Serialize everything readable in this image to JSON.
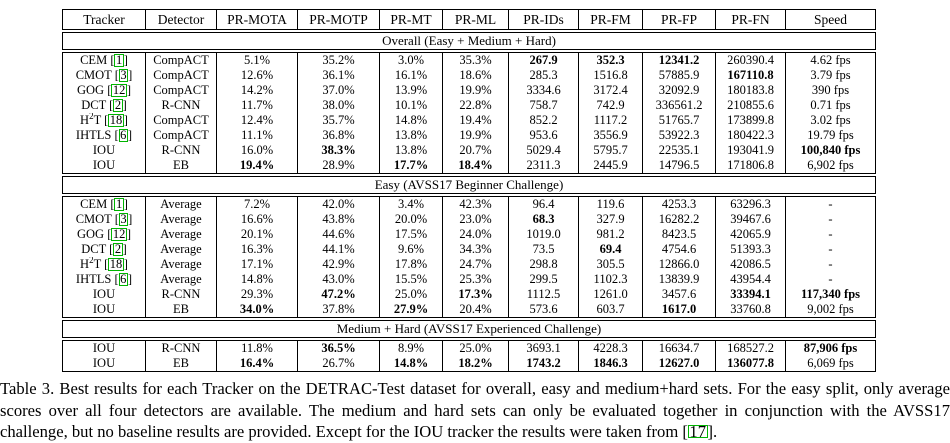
{
  "colors": {
    "citation_box_green": "#00b400",
    "table_border": "#000000",
    "text": "#000000",
    "background": "#ffffff"
  },
  "table": {
    "columns": [
      "Tracker",
      "Detector",
      "PR-MOTA",
      "PR-MOTP",
      "PR-MT",
      "PR-ML",
      "PR-IDs",
      "PR-FM",
      "PR-FP",
      "PR-FN",
      "Speed"
    ],
    "sections": [
      {
        "title": "Overall (Easy + Medium + Hard)",
        "rows": [
          {
            "tracker": [
              {
                "t": "CEM"
              }
            ],
            "cite": "1",
            "detector": "CompACT",
            "values": [
              "5.1%",
              "35.2%",
              "3.0%",
              "35.3%",
              "267.9",
              "352.3",
              "12341.2",
              "260390.4",
              "4.62 fps"
            ],
            "bold": [
              4,
              5,
              6
            ]
          },
          {
            "tracker": [
              {
                "t": "CMOT"
              }
            ],
            "cite": "3",
            "detector": "CompACT",
            "values": [
              "12.6%",
              "36.1%",
              "16.1%",
              "18.6%",
              "285.3",
              "1516.8",
              "57885.9",
              "167110.8",
              "3.79 fps"
            ],
            "bold": [
              7
            ]
          },
          {
            "tracker": [
              {
                "t": "GOG"
              }
            ],
            "cite": "12",
            "detector": "CompACT",
            "values": [
              "14.2%",
              "37.0%",
              "13.9%",
              "19.9%",
              "3334.6",
              "3172.4",
              "32092.9",
              "180183.8",
              "390 fps"
            ],
            "bold": []
          },
          {
            "tracker": [
              {
                "t": "DCT"
              }
            ],
            "cite": "2",
            "detector": "R-CNN",
            "values": [
              "11.7%",
              "38.0%",
              "10.1%",
              "22.8%",
              "758.7",
              "742.9",
              "336561.2",
              "210855.6",
              "0.71 fps"
            ],
            "bold": []
          },
          {
            "tracker": [
              {
                "t": "H"
              },
              {
                "t": "2",
                "sup": true
              },
              {
                "t": "T"
              }
            ],
            "cite": "18",
            "detector": "CompACT",
            "values": [
              "12.4%",
              "35.7%",
              "14.8%",
              "19.4%",
              "852.2",
              "1117.2",
              "51765.7",
              "173899.8",
              "3.02 fps"
            ],
            "bold": []
          },
          {
            "tracker": [
              {
                "t": "IHTLS"
              }
            ],
            "cite": "6",
            "detector": "CompACT",
            "values": [
              "11.1%",
              "36.8%",
              "13.8%",
              "19.9%",
              "953.6",
              "3556.9",
              "53922.3",
              "180422.3",
              "19.79 fps"
            ],
            "bold": []
          },
          {
            "tracker": [
              {
                "t": "IOU"
              }
            ],
            "cite": null,
            "detector": "R-CNN",
            "values": [
              "16.0%",
              "38.3%",
              "13.8%",
              "20.7%",
              "5029.4",
              "5795.7",
              "22535.1",
              "193041.9",
              "100,840 fps"
            ],
            "bold": [
              1,
              8
            ]
          },
          {
            "tracker": [
              {
                "t": "IOU"
              }
            ],
            "cite": null,
            "detector": "EB",
            "values": [
              "19.4%",
              "28.9%",
              "17.7%",
              "18.4%",
              "2311.3",
              "2445.9",
              "14796.5",
              "171806.8",
              "6,902 fps"
            ],
            "bold": [
              0,
              2,
              3
            ]
          }
        ]
      },
      {
        "title": "Easy (AVSS17 Beginner Challenge)",
        "rows": [
          {
            "tracker": [
              {
                "t": "CEM"
              }
            ],
            "cite": "1",
            "detector": "Average",
            "values": [
              "7.2%",
              "42.0%",
              "3.4%",
              "42.3%",
              "96.4",
              "119.6",
              "4253.3",
              "63296.3",
              "-"
            ],
            "bold": []
          },
          {
            "tracker": [
              {
                "t": "CMOT"
              }
            ],
            "cite": "3",
            "detector": "Average",
            "values": [
              "16.6%",
              "43.8%",
              "20.0%",
              "23.0%",
              "68.3",
              "327.9",
              "16282.2",
              "39467.6",
              "-"
            ],
            "bold": [
              4
            ]
          },
          {
            "tracker": [
              {
                "t": "GOG"
              }
            ],
            "cite": "12",
            "detector": "Average",
            "values": [
              "20.1%",
              "44.6%",
              "17.5%",
              "24.0%",
              "1019.0",
              "981.2",
              "8423.5",
              "42065.9",
              "-"
            ],
            "bold": []
          },
          {
            "tracker": [
              {
                "t": "DCT"
              }
            ],
            "cite": "2",
            "detector": "Average",
            "values": [
              "16.3%",
              "44.1%",
              "9.6%",
              "34.3%",
              "73.5",
              "69.4",
              "4754.6",
              "51393.3",
              "-"
            ],
            "bold": [
              5
            ]
          },
          {
            "tracker": [
              {
                "t": "H"
              },
              {
                "t": "2",
                "sup": true
              },
              {
                "t": "T"
              }
            ],
            "cite": "18",
            "detector": "Average",
            "values": [
              "17.1%",
              "42.9%",
              "17.8%",
              "24.7%",
              "298.8",
              "305.5",
              "12866.0",
              "42086.5",
              "-"
            ],
            "bold": []
          },
          {
            "tracker": [
              {
                "t": "IHTLS"
              }
            ],
            "cite": "6",
            "detector": "Average",
            "values": [
              "14.8%",
              "43.0%",
              "15.5%",
              "25.3%",
              "299.5",
              "1102.3",
              "13839.9",
              "43954.4",
              "-"
            ],
            "bold": []
          },
          {
            "tracker": [
              {
                "t": "IOU"
              }
            ],
            "cite": null,
            "detector": "R-CNN",
            "values": [
              "29.3%",
              "47.2%",
              "25.0%",
              "17.3%",
              "1112.5",
              "1261.0",
              "3457.6",
              "33394.1",
              "117,340 fps"
            ],
            "bold": [
              1,
              3,
              7,
              8
            ]
          },
          {
            "tracker": [
              {
                "t": "IOU"
              }
            ],
            "cite": null,
            "detector": "EB",
            "values": [
              "34.0%",
              "37.8%",
              "27.9%",
              "20.4%",
              "573.6",
              "603.7",
              "1617.0",
              "33760.8",
              "9,002 fps"
            ],
            "bold": [
              0,
              2,
              6
            ]
          }
        ]
      },
      {
        "title": "Medium + Hard (AVSS17 Experienced Challenge)",
        "rows": [
          {
            "tracker": [
              {
                "t": "IOU"
              }
            ],
            "cite": null,
            "detector": "R-CNN",
            "values": [
              "11.8%",
              "36.5%",
              "8.9%",
              "25.0%",
              "3693.1",
              "4228.3",
              "16634.7",
              "168527.2",
              "87,906 fps"
            ],
            "bold": [
              1,
              8
            ]
          },
          {
            "tracker": [
              {
                "t": "IOU"
              }
            ],
            "cite": null,
            "detector": "EB",
            "values": [
              "16.4%",
              "26.7%",
              "14.8%",
              "18.2%",
              "1743.2",
              "1846.3",
              "12627.0",
              "136077.8",
              "6,069 fps"
            ],
            "bold": [
              0,
              2,
              3,
              4,
              5,
              6,
              7
            ]
          }
        ]
      }
    ]
  },
  "caption": {
    "text_before_cite": "Table 3. Best results for each Tracker on the DETRAC-Test dataset for overall, easy and medium+hard sets. For the easy split, only average scores over all four detectors are available.  The medium and hard sets can only be evaluated together in conjunction with the AVSS17 challenge, but no baseline results are provided. Except for the IOU tracker the results were taken from [",
    "cite": "17",
    "text_after_cite": "]."
  }
}
